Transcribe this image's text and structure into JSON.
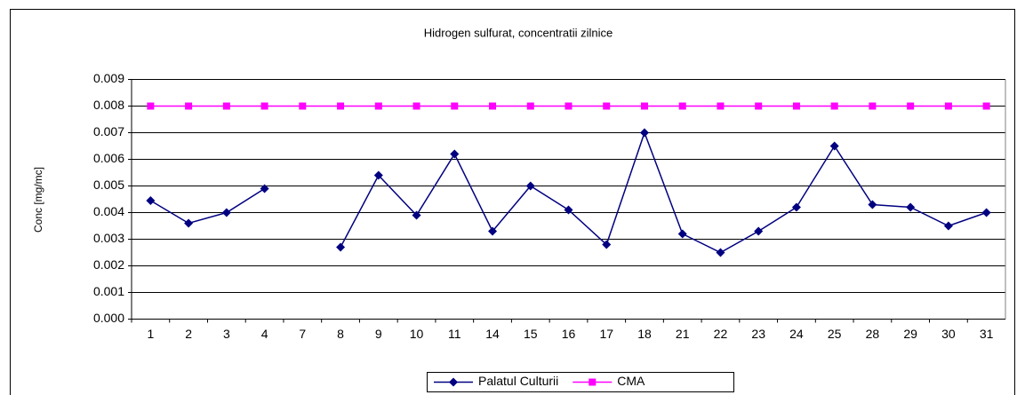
{
  "chart_data": {
    "type": "line",
    "title": "Hidrogen sulfurat, concentratii zilnice",
    "ylabel": "Conc [mg/mc]",
    "categories": [
      "1",
      "2",
      "3",
      "4",
      "7",
      "8",
      "9",
      "10",
      "11",
      "14",
      "15",
      "16",
      "17",
      "18",
      "21",
      "22",
      "23",
      "24",
      "25",
      "28",
      "29",
      "30",
      "31"
    ],
    "series": [
      {
        "name": "Palatul Culturii",
        "color": "#000080",
        "marker": "diamond",
        "values": [
          0.00445,
          0.0036,
          0.004,
          0.0049,
          null,
          0.0027,
          0.0054,
          0.0039,
          0.0062,
          0.0033,
          0.005,
          0.0041,
          0.0028,
          0.007,
          0.0032,
          0.0025,
          0.0033,
          0.0042,
          0.0065,
          0.0043,
          0.0042,
          0.0035,
          0.004
        ]
      },
      {
        "name": "CMA",
        "color": "#ff00ff",
        "marker": "square",
        "values": [
          0.008,
          0.008,
          0.008,
          0.008,
          0.008,
          0.008,
          0.008,
          0.008,
          0.008,
          0.008,
          0.008,
          0.008,
          0.008,
          0.008,
          0.008,
          0.008,
          0.008,
          0.008,
          0.008,
          0.008,
          0.008,
          0.008,
          0.008
        ]
      }
    ],
    "ylim": [
      0,
      0.009
    ],
    "yticks": [
      {
        "value": 0,
        "label": "0.000"
      },
      0.001,
      0.002,
      0.003,
      0.004,
      0.005,
      0.006,
      0.007,
      0.008,
      0.009
    ],
    "grid": true,
    "legend": "bottom"
  }
}
